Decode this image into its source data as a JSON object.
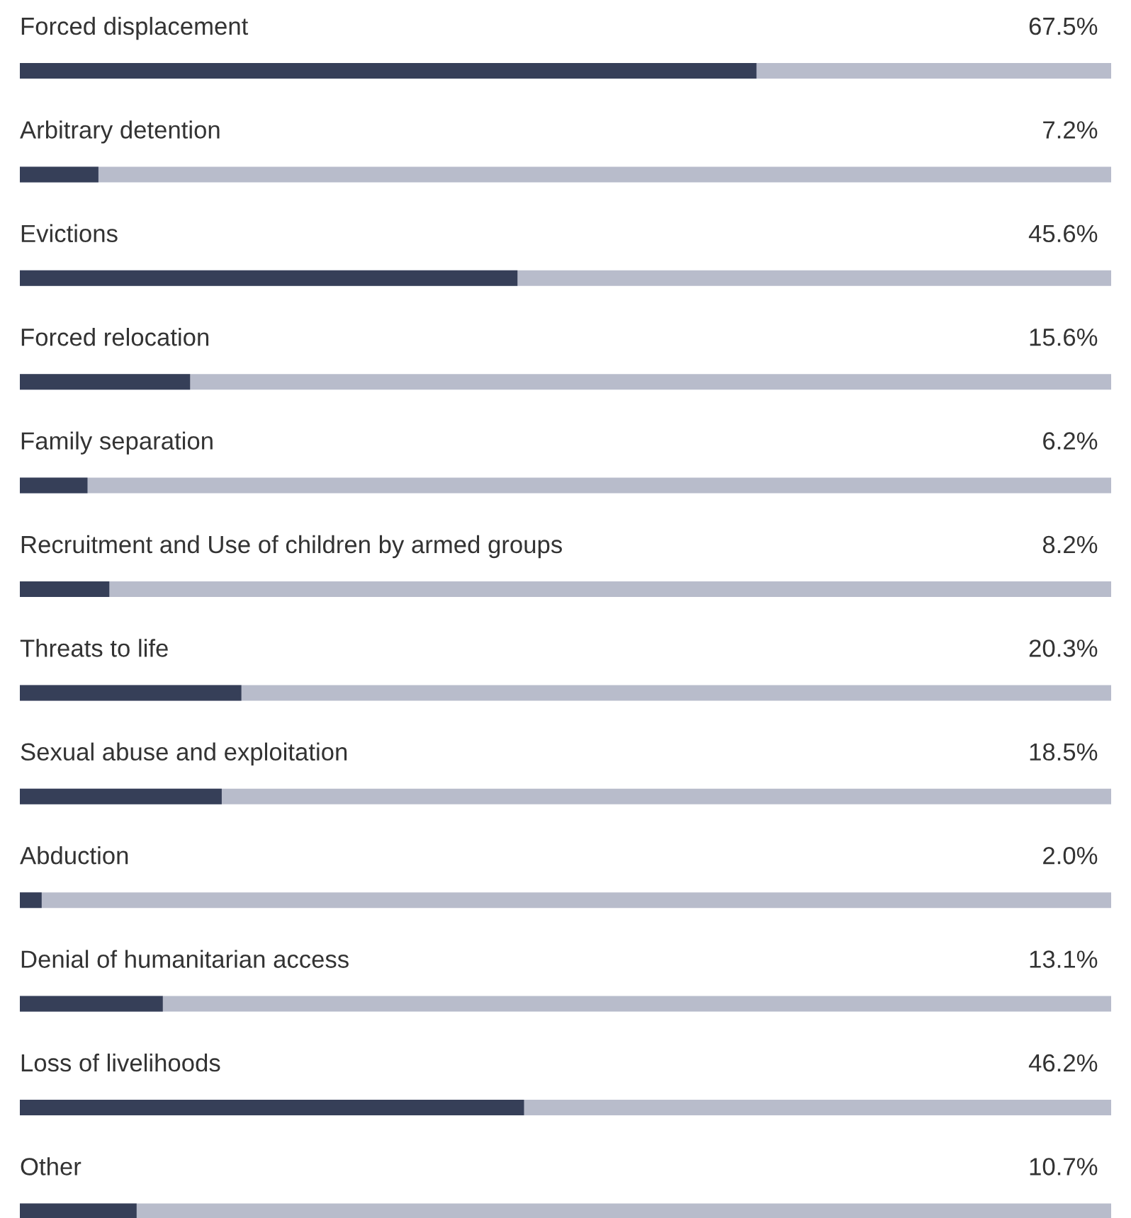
{
  "chart_data": {
    "type": "bar",
    "orientation": "horizontal",
    "categories": [
      "Forced displacement",
      "Arbitrary detention",
      "Evictions",
      "Forced relocation",
      "Family separation",
      "Recruitment and Use of children by armed groups",
      "Threats to life",
      "Sexual abuse and exploitation",
      "Abduction",
      "Denial of humanitarian access",
      "Loss of livelihoods",
      "Other"
    ],
    "values": [
      67.5,
      7.2,
      45.6,
      15.6,
      6.2,
      8.2,
      20.3,
      18.5,
      2.0,
      13.1,
      46.2,
      10.7
    ],
    "value_labels": [
      "67.5%",
      "7.2%",
      "45.6%",
      "15.6%",
      "6.2%",
      "8.2%",
      "20.3%",
      "18.5%",
      "2.0%",
      "13.1%",
      "46.2%",
      "10.7%"
    ],
    "color": "#363f58",
    "xlim": [
      0,
      100
    ],
    "tick_labels": false
  }
}
